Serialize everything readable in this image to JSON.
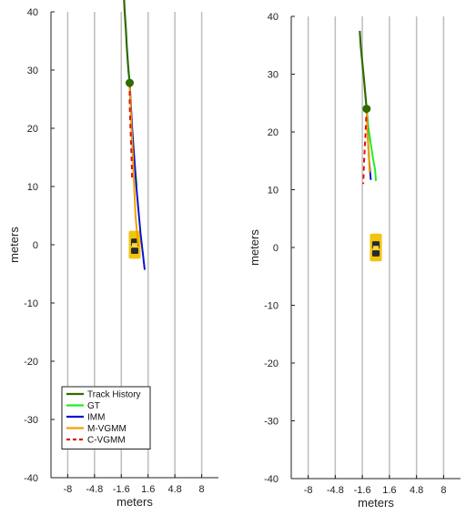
{
  "chart_data": [
    {
      "type": "line",
      "title": "",
      "xlabel": "meters",
      "ylabel": "meters",
      "xlim": [
        -10,
        10
      ],
      "ylim": [
        -40,
        40
      ],
      "xticks": [
        -8,
        -4.8,
        -1.6,
        1.6,
        4.8,
        8
      ],
      "xtick_labels": [
        "-8",
        "-4.8",
        "-1.6",
        "1.6",
        "4.8",
        "8"
      ],
      "yticks": [
        -40,
        -30,
        -20,
        -10,
        0,
        10,
        20,
        30,
        40
      ],
      "ytick_labels": [
        "-40",
        "-30",
        "-20",
        "-10",
        "0",
        "10",
        "20",
        "30",
        "40"
      ],
      "grid": "vertical",
      "vehicle": {
        "x": 0.0,
        "y": 0.0,
        "length": 4.8,
        "width": 1.2
      },
      "legend": {
        "placement": "bottom-left",
        "entries": [
          "Track History",
          "GT",
          "IMM",
          "M-VGMM",
          "C-VGMM"
        ]
      },
      "series": [
        {
          "name": "Track History",
          "color": "#2e6b00",
          "style": "solid",
          "width": 2.2,
          "x": [
            -1.3,
            -1.2,
            -1.05,
            -0.95,
            -0.85,
            -0.75,
            -0.6
          ],
          "y": [
            43,
            40,
            37,
            34,
            32,
            30,
            27.8
          ]
        },
        {
          "name": "GT",
          "color": "#22ee22",
          "style": "solid",
          "width": 2,
          "x": [
            -0.6,
            -0.5,
            -0.35,
            -0.15,
            0.05,
            0.25
          ],
          "y": [
            27.8,
            24,
            20,
            16,
            13,
            10
          ]
        },
        {
          "name": "IMM",
          "color": "#0a14d0",
          "style": "solid",
          "width": 2,
          "x": [
            -0.6,
            -0.3,
            0.2,
            0.7,
            1.2
          ],
          "y": [
            27.8,
            20,
            10,
            2,
            -4.3
          ]
        },
        {
          "name": "M-VGMM",
          "color": "#f5a000",
          "style": "solid",
          "width": 2,
          "x": [
            -0.6,
            -0.45,
            -0.25,
            -0.1,
            0.1,
            0.4
          ],
          "y": [
            27.8,
            22,
            16,
            11,
            5,
            0
          ]
        },
        {
          "name": "C-VGMM",
          "color": "#dd1111",
          "style": "dashed",
          "width": 2,
          "x": [
            -0.6,
            -0.6,
            -0.5,
            -0.4,
            -0.3
          ],
          "y": [
            27.8,
            24,
            20,
            16,
            11.5
          ]
        }
      ],
      "markers": [
        {
          "x": -0.6,
          "y": 27.8,
          "color": "#2e6b00"
        }
      ]
    },
    {
      "type": "line",
      "title": "",
      "xlabel": "meters",
      "ylabel": "meters",
      "xlim": [
        -10,
        10
      ],
      "ylim": [
        -40,
        40
      ],
      "xticks": [
        -8,
        -4.8,
        -1.6,
        1.6,
        4.8,
        8
      ],
      "xtick_labels": [
        "-8",
        "-4.8",
        "-1.6",
        "1.6",
        "4.8",
        "8"
      ],
      "yticks": [
        -40,
        -30,
        -20,
        -10,
        0,
        10,
        20,
        30,
        40
      ],
      "ytick_labels": [
        "-40",
        "-30",
        "-20",
        "-10",
        "0",
        "10",
        "20",
        "30",
        "40"
      ],
      "grid": "vertical",
      "vehicle": {
        "x": 0.0,
        "y": 0.0,
        "length": 4.8,
        "width": 1.2
      },
      "legend": null,
      "series": [
        {
          "name": "Track History",
          "color": "#2e6b00",
          "style": "solid",
          "width": 2.2,
          "x": [
            -1.9,
            -1.8,
            -1.6,
            -1.4,
            -1.25,
            -1.1
          ],
          "y": [
            37.5,
            35,
            32,
            29,
            26.5,
            24
          ]
        },
        {
          "name": "GT",
          "color": "#22ee22",
          "style": "solid",
          "width": 2,
          "x": [
            -1.1,
            -0.9,
            -0.6,
            -0.35,
            -0.1,
            0.0
          ],
          "y": [
            24,
            21,
            18,
            15.5,
            13.5,
            11.5
          ]
        },
        {
          "name": "IMM",
          "color": "#0a14d0",
          "style": "solid",
          "width": 2,
          "x": [
            -1.1,
            -0.95,
            -0.8,
            -0.6
          ],
          "y": [
            24,
            19,
            15,
            11.7
          ]
        },
        {
          "name": "M-VGMM",
          "color": "#f5a000",
          "style": "solid",
          "width": 2,
          "x": [
            -1.1,
            -1.0,
            -0.85,
            -0.75
          ],
          "y": [
            24,
            20,
            16.5,
            13
          ]
        },
        {
          "name": "C-VGMM",
          "color": "#dd1111",
          "style": "dashed",
          "width": 2,
          "x": [
            -1.1,
            -1.25,
            -1.4,
            -1.5
          ],
          "y": [
            24,
            19,
            15,
            11
          ]
        }
      ],
      "markers": [
        {
          "x": -1.1,
          "y": 24.0,
          "color": "#2e6b00"
        }
      ]
    }
  ]
}
